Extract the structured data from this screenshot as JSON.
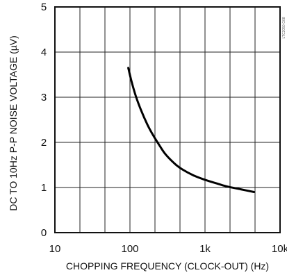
{
  "chart_data": {
    "type": "line",
    "title": "",
    "xlabel": "CHOPPING FREQUENCY (CLOCK-OUT) (Hz)",
    "ylabel": "DC TO 10Hz P-P NOISE VOLTAGE (µV)",
    "x_scale": "log",
    "xlim": [
      10,
      10000
    ],
    "ylim": [
      0,
      5
    ],
    "x_tick_values": [
      10,
      100,
      1000,
      10000
    ],
    "x_tick_labels": [
      "10",
      "100",
      "1k",
      "10k"
    ],
    "y_tick_values": [
      0,
      1,
      2,
      3,
      4,
      5
    ],
    "y_tick_labels": [
      "0",
      "1",
      "2",
      "3",
      "4",
      "5"
    ],
    "grid": true,
    "side_note": "LTC2050 G08",
    "series": [
      {
        "x": [
          95,
          105,
          120,
          140,
          170,
          200,
          250,
          300,
          400,
          500,
          700,
          1000,
          1500,
          2000,
          3000,
          4500
        ],
        "y": [
          3.65,
          3.35,
          3.02,
          2.72,
          2.4,
          2.18,
          1.92,
          1.73,
          1.52,
          1.4,
          1.27,
          1.17,
          1.08,
          1.02,
          0.96,
          0.9
        ]
      }
    ]
  }
}
